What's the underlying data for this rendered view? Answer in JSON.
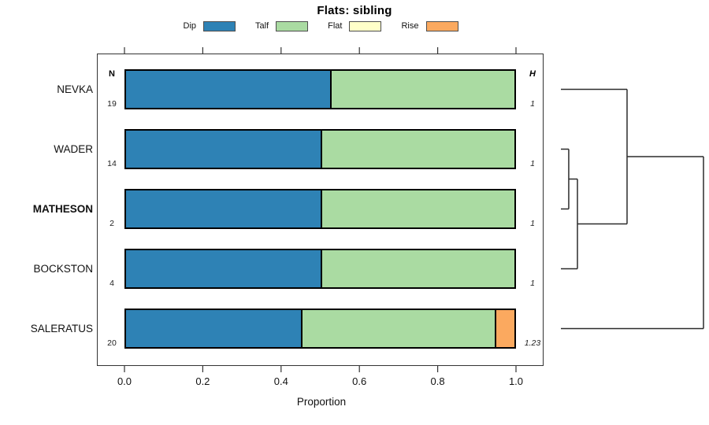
{
  "title": "Flats: sibling",
  "legend": {
    "items": [
      {
        "label": "Dip",
        "color": "#2E82B5"
      },
      {
        "label": "Talf",
        "color": "#AADBA2"
      },
      {
        "label": "Flat",
        "color": "#FFFFC9"
      },
      {
        "label": "Rise",
        "color": "#FBA95F"
      }
    ]
  },
  "columns": {
    "n_header": "N",
    "h_header": "H"
  },
  "axis": {
    "label": "Proportion",
    "ticks": [
      "0.0",
      "0.2",
      "0.4",
      "0.6",
      "0.8",
      "1.0"
    ],
    "range": [
      0,
      1
    ]
  },
  "chart_data": {
    "type": "bar",
    "subtype": "horizontal-stacked-proportion",
    "title": "Flats: sibling",
    "xlabel": "Proportion",
    "xlim": [
      0,
      1
    ],
    "grid": false,
    "legend_position": "top",
    "categories": [
      "Dip",
      "Talf",
      "Flat",
      "Rise"
    ],
    "category_colors": [
      "#2E82B5",
      "#AADBA2",
      "#FFFFC9",
      "#FBA95F"
    ],
    "rows": [
      {
        "label": "NEVKA",
        "n": 19,
        "h": "1",
        "bold": false,
        "values": [
          0.526,
          0.474,
          0,
          0
        ]
      },
      {
        "label": "WADER",
        "n": 14,
        "h": "1",
        "bold": false,
        "values": [
          0.5,
          0.5,
          0,
          0
        ]
      },
      {
        "label": "MATHESON",
        "n": 2,
        "h": "1",
        "bold": true,
        "values": [
          0.5,
          0.5,
          0,
          0
        ]
      },
      {
        "label": "BOCKSTON",
        "n": 4,
        "h": "1",
        "bold": false,
        "values": [
          0.5,
          0.5,
          0,
          0
        ]
      },
      {
        "label": "SALERATUS",
        "n": 20,
        "h": "1.23",
        "bold": false,
        "values": [
          0.45,
          0.5,
          0,
          0.05
        ]
      }
    ],
    "dendrogram": {
      "leaves": [
        "NEVKA",
        "WADER",
        "MATHESON",
        "BOCKSTON",
        "SALERATUS"
      ],
      "merges": [
        {
          "a": "WADER",
          "b": "MATHESON",
          "offset": 0.055
        },
        {
          "a": "merge0",
          "b": "BOCKSTON",
          "offset": 0.116
        },
        {
          "a": "NEVKA",
          "b": "merge1",
          "offset": 0.464
        },
        {
          "a": "merge2",
          "b": "SALERATUS",
          "offset": 1.0
        }
      ]
    }
  }
}
